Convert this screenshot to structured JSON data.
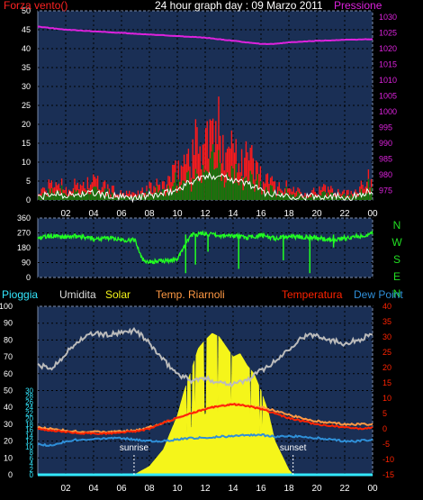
{
  "title": "24 hour graph day : 09 Marzo 2011",
  "x_ticks": [
    "02",
    "04",
    "06",
    "08",
    "10",
    "12",
    "14",
    "16",
    "18",
    "20",
    "22",
    "00"
  ],
  "colors": {
    "plot_bg": "#1a2f55",
    "grid": "#000000",
    "frame": "#7a8aa8",
    "wind": "#ff1a1a",
    "wind_white": "#ffffff",
    "wind_green": "#0a7a0a",
    "pressure": "#dd22dd",
    "direction": "#22ff22",
    "compass": "#22dd22",
    "humidity": "#bbbbbb",
    "solar": "#f5f51a",
    "riarnoli": "#ff9944",
    "temperature": "#ff2200",
    "dewpoint": "#2f8fd8",
    "rain": "#33e8ff",
    "event": "#ffffff"
  },
  "chart_data": [
    {
      "type": "area",
      "name": "wind_pressure",
      "left_label": "Forza vento()",
      "right_label": "Pressione",
      "left_ticks": [
        "0",
        "5",
        "10",
        "15",
        "20",
        "25",
        "30",
        "35",
        "40",
        "45",
        "50"
      ],
      "right_ticks": [
        "975",
        "980",
        "985",
        "990",
        "995",
        "1000",
        "1005",
        "1010",
        "1015",
        "1020",
        "1025",
        "1030"
      ],
      "ylim_left": [
        0,
        50
      ],
      "ylim_right": [
        972,
        1032
      ],
      "series": [
        {
          "key": "gust",
          "hours": [
            0,
            1,
            1.5,
            2,
            3,
            4,
            5,
            5.5,
            6,
            7,
            7.5,
            8,
            9,
            10,
            10.5,
            11,
            11.5,
            12,
            12.5,
            13,
            13.5,
            14,
            14.5,
            15,
            15.5,
            16,
            16.5,
            17,
            18,
            19,
            20,
            21,
            22,
            22.5,
            23,
            23.5,
            24
          ],
          "values": [
            2,
            5,
            6,
            4,
            5,
            6,
            4,
            3,
            2,
            2,
            3,
            4,
            5,
            9,
            13,
            16,
            19,
            20,
            21,
            22,
            21,
            18,
            16,
            15,
            12,
            8,
            6,
            5,
            4,
            3,
            3,
            4,
            3,
            2,
            5,
            7,
            6
          ]
        },
        {
          "key": "pressure",
          "hours": [
            0,
            2,
            4,
            6,
            8,
            10,
            12,
            14,
            16,
            17,
            18,
            20,
            22,
            24
          ],
          "values": [
            1027,
            1026,
            1025.5,
            1025,
            1024.5,
            1024,
            1023.5,
            1022.5,
            1021.5,
            1021.5,
            1022,
            1022.5,
            1022.8,
            1023
          ]
        }
      ]
    },
    {
      "type": "line",
      "name": "wind_direction",
      "ylim": [
        0,
        360
      ],
      "left_ticks": [
        "0",
        "90",
        "180",
        "270",
        "360"
      ],
      "compass": [
        "N",
        "W",
        "S",
        "E",
        "N"
      ],
      "series": [
        {
          "key": "direction",
          "hours": [
            0,
            1,
            2,
            3,
            4,
            5,
            6,
            7,
            7.5,
            8,
            9,
            10,
            11,
            12,
            13,
            14,
            15,
            16,
            17,
            18,
            19,
            20,
            21,
            22,
            23,
            24
          ],
          "values": [
            240,
            250,
            245,
            250,
            235,
            240,
            230,
            225,
            110,
            95,
            100,
            110,
            260,
            265,
            250,
            255,
            240,
            255,
            235,
            250,
            245,
            240,
            225,
            240,
            250,
            265
          ]
        }
      ]
    },
    {
      "type": "line",
      "name": "climate",
      "legend": [
        "Pioggia",
        "Umidita",
        "Solar",
        "Temp. Riarnoli",
        "Temperatura",
        "Dew Point"
      ],
      "left_ticks_a": [
        "0",
        "10",
        "20",
        "30",
        "40",
        "50",
        "60",
        "70",
        "80",
        "90",
        "100"
      ],
      "left_ticks_b": [
        "0",
        "2",
        "4",
        "6",
        "8",
        "10",
        "12",
        "14",
        "16",
        "18",
        "20",
        "22",
        "24",
        "26",
        "28",
        "30"
      ],
      "right_ticks": [
        "-15",
        "-10",
        "-5",
        "0",
        "5",
        "10",
        "15",
        "20",
        "25",
        "30",
        "35",
        "40"
      ],
      "ylim_pct": [
        0,
        100
      ],
      "ylim_temp": [
        -15,
        40
      ],
      "events": [
        {
          "label": "sunrise",
          "hour": 6.9
        },
        {
          "label": "sunset",
          "hour": 18.3
        }
      ],
      "series": [
        {
          "key": "humidity",
          "hours": [
            0,
            1,
            2,
            3,
            4,
            5,
            6,
            7,
            8,
            9,
            10,
            11,
            12,
            13,
            14,
            15,
            16,
            17,
            18,
            19,
            20,
            21,
            22,
            23,
            24
          ],
          "values": [
            65,
            63,
            72,
            80,
            84,
            83,
            84,
            86,
            78,
            68,
            60,
            56,
            57,
            55,
            54,
            56,
            62,
            67,
            75,
            82,
            83,
            80,
            78,
            80,
            84
          ]
        },
        {
          "key": "solar",
          "hours": [
            6.9,
            8,
            9,
            10,
            10.5,
            11,
            11.5,
            12,
            12.5,
            13,
            13.5,
            14,
            14.5,
            15,
            15.5,
            16,
            16.5,
            17,
            18,
            18.3
          ],
          "values": [
            0,
            5,
            15,
            35,
            50,
            62,
            75,
            80,
            84,
            82,
            76,
            70,
            72,
            65,
            60,
            50,
            38,
            20,
            3,
            0
          ]
        },
        {
          "key": "riarnoli",
          "hours": [
            0,
            1,
            2,
            3,
            4,
            5,
            6,
            7,
            8,
            9,
            10,
            11,
            12,
            13,
            14,
            15,
            16,
            17,
            18,
            19,
            20,
            21,
            22,
            23,
            24
          ],
          "values": [
            0.5,
            0,
            -0.5,
            -1,
            -1,
            -1,
            -0.8,
            -0.5,
            0.5,
            2,
            3.5,
            5,
            6.5,
            7.5,
            8,
            7.5,
            7,
            6,
            4.5,
            3.5,
            2.5,
            2,
            1.5,
            1.5,
            1.5
          ]
        },
        {
          "key": "temperature",
          "hours": [
            0,
            1,
            2,
            3,
            4,
            5,
            6,
            7,
            8,
            9,
            10,
            11,
            12,
            13,
            14,
            15,
            16,
            17,
            18,
            19,
            20,
            21,
            22,
            23,
            24
          ],
          "values": [
            0,
            -0.5,
            -1,
            -1.5,
            -1.5,
            -1.5,
            -1.2,
            -0.8,
            0,
            2,
            3.5,
            5,
            6.5,
            7.5,
            8,
            7.5,
            6.5,
            5,
            3.5,
            2.5,
            1.5,
            1,
            0.5,
            0,
            0.5
          ]
        },
        {
          "key": "dewpoint",
          "hours": [
            0,
            1,
            2,
            3,
            4,
            5,
            6,
            7,
            8,
            9,
            10,
            11,
            12,
            13,
            14,
            15,
            16,
            17,
            18,
            19,
            20,
            21,
            22,
            23,
            24
          ],
          "values": [
            -5,
            -5.5,
            -4,
            -3.5,
            -3.5,
            -3,
            -3,
            -3.5,
            -4,
            -4,
            -3.5,
            -3,
            -3,
            -2.5,
            -2.5,
            -2,
            -2,
            -2.5,
            -2.5,
            -2.5,
            -3,
            -3.5,
            -4,
            -4,
            -3.5
          ]
        },
        {
          "key": "rain",
          "hours": [
            0,
            24
          ],
          "values": [
            0,
            0
          ]
        }
      ]
    }
  ]
}
